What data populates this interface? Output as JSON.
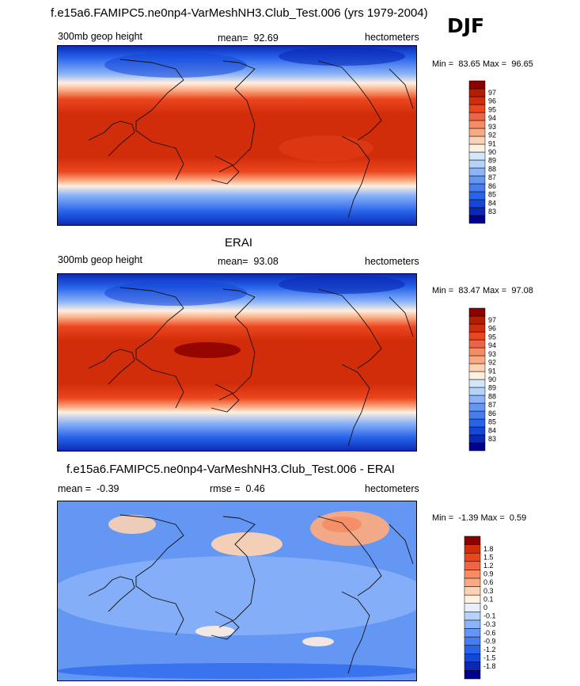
{
  "header": {
    "title": "f.e15a6.FAMIPC5.ne0np4-VarMeshNH3.Club_Test.006 (yrs 1979-2004)",
    "season": "DJF"
  },
  "colors": {
    "abs_scale": [
      "#00008b",
      "#0a28b4",
      "#1446d7",
      "#2864eb",
      "#467ef0",
      "#6496f4",
      "#8cb4f8",
      "#b4d2fa",
      "#d2e6fc",
      "#fff0e0",
      "#fcd2b4",
      "#faaa82",
      "#f58c64",
      "#f06446",
      "#eb461e",
      "#d22d0a",
      "#b41e00",
      "#8b0000"
    ],
    "diff_scale": [
      "#00008b",
      "#0a28b4",
      "#1446d7",
      "#2864eb",
      "#467ef0",
      "#6496f4",
      "#8cb4f8",
      "#b4d2fa",
      "#e6f0fc",
      "#fff0e0",
      "#fcd2b4",
      "#faaa82",
      "#f58c64",
      "#f06446",
      "#eb461e",
      "#d22d0a",
      "#8b0000"
    ]
  },
  "chart_data": [
    {
      "type": "heatmap",
      "id": "model",
      "title": "",
      "left_label": "300mb geop height",
      "mean_label": "mean=",
      "mean_value": "92.69",
      "units": "hectometers",
      "min_label": "Min =",
      "min_value": "83.65",
      "max_label": "Max =",
      "max_value": "96.65",
      "levels": [
        "97",
        "96",
        "95",
        "94",
        "93",
        "92",
        "91",
        "90",
        "89",
        "88",
        "87",
        "86",
        "85",
        "84",
        "83"
      ],
      "field": "geopotential height zonal bands: ~83-85 near poles, ~96 in tropics"
    },
    {
      "type": "heatmap",
      "id": "obs",
      "title": "ERAI",
      "left_label": "300mb geop height",
      "mean_label": "mean=",
      "mean_value": "93.08",
      "units": "hectometers",
      "min_label": "Min =",
      "min_value": "83.47",
      "max_label": "Max =",
      "max_value": "97.08",
      "levels": [
        "97",
        "96",
        "95",
        "94",
        "93",
        "92",
        "91",
        "90",
        "89",
        "88",
        "87",
        "86",
        "85",
        "84",
        "83"
      ],
      "field": "geopotential height zonal bands with western Pacific maximum ~97"
    },
    {
      "type": "heatmap",
      "id": "diff",
      "title": "f.e15a6.FAMIPC5.ne0np4-VarMeshNH3.Club_Test.006 - ERAI",
      "left_label": "mean =",
      "mean_value": "-0.39",
      "rmse_label": "rmse =",
      "rmse_value": "0.46",
      "units": "hectometers",
      "min_label": "Min =",
      "min_value": "-1.39",
      "max_label": "Max =",
      "max_value": "0.59",
      "levels": [
        "1.8",
        "1.5",
        "1.2",
        "0.9",
        "0.6",
        "0.3",
        "0.1",
        "0",
        "-0.1",
        "-0.3",
        "-0.6",
        "-0.9",
        "-1.2",
        "-1.5",
        "-1.8"
      ],
      "field": "difference mostly -0.3 to -0.6, positive patches over Asia, N. Pacific, Europe"
    }
  ]
}
